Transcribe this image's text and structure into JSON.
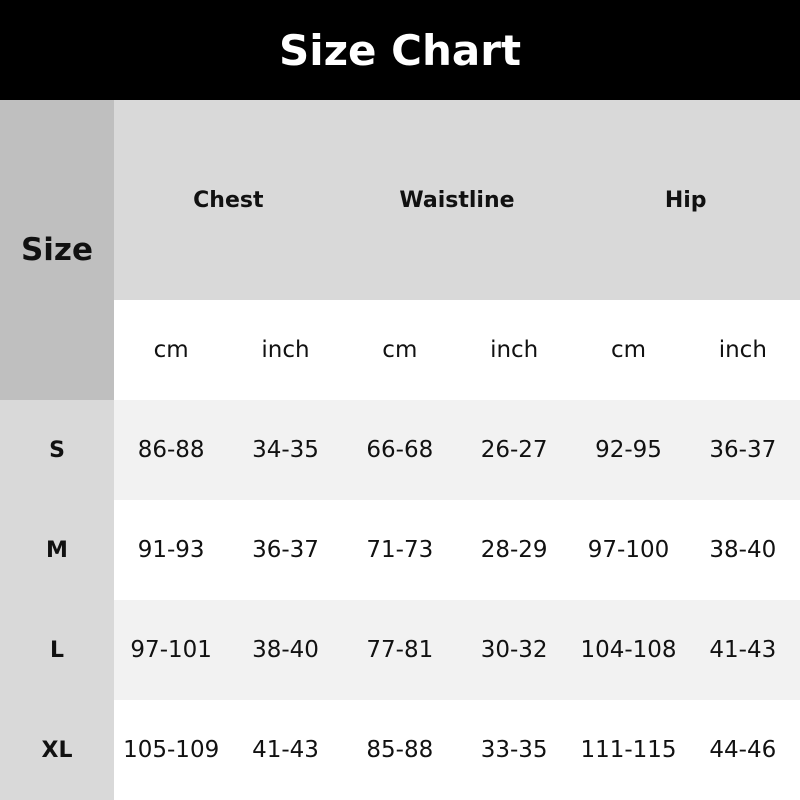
{
  "title": "Size Chart",
  "size_header": "Size",
  "groups": [
    "Chest",
    "Waistline",
    "Hip"
  ],
  "units": [
    "cm",
    "inch",
    "cm",
    "inch",
    "cm",
    "inch"
  ],
  "rows": [
    {
      "size": "S",
      "values": [
        "86-88",
        "34-35",
        "66-68",
        "26-27",
        "92-95",
        "36-37"
      ]
    },
    {
      "size": "M",
      "values": [
        "91-93",
        "36-37",
        "71-73",
        "28-29",
        "97-100",
        "38-40"
      ]
    },
    {
      "size": "L",
      "values": [
        "97-101",
        "38-40",
        "77-81",
        "30-32",
        "104-108",
        "41-43"
      ]
    },
    {
      "size": "XL",
      "values": [
        "105-109",
        "41-43",
        "85-88",
        "33-35",
        "111-115",
        "44-46"
      ]
    }
  ]
}
